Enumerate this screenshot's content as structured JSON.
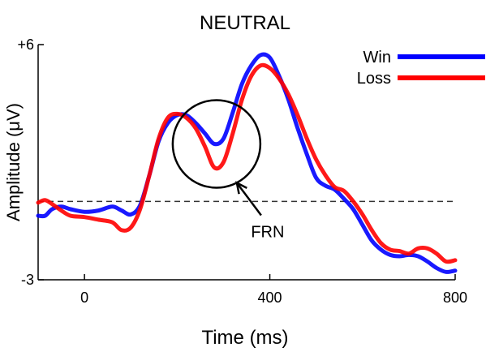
{
  "chart_data": {
    "type": "line",
    "title": "NEUTRAL",
    "xlabel": "Time (ms)",
    "ylabel": "Amplitude (μV)",
    "xlim": [
      -100,
      800
    ],
    "ylim": [
      -3,
      6
    ],
    "x_ticks": [
      {
        "value": 0,
        "label": "0"
      },
      {
        "value": 400,
        "label": "400"
      },
      {
        "value": 800,
        "label": "800"
      }
    ],
    "y_ticks": [
      {
        "value": 6,
        "label": "+6"
      },
      {
        "value": -3,
        "label": "-3"
      }
    ],
    "baseline": 0,
    "grid": false,
    "legend_position": "top-right",
    "annotation": {
      "text": "FRN",
      "target_x": 285,
      "target_y": 2.2
    },
    "series": [
      {
        "name": "Win",
        "color": "#0000ff",
        "points": [
          [
            -100,
            -0.55
          ],
          [
            -85,
            -0.55
          ],
          [
            -70,
            -0.3
          ],
          [
            -50,
            -0.2
          ],
          [
            -30,
            -0.3
          ],
          [
            0,
            -0.4
          ],
          [
            30,
            -0.35
          ],
          [
            60,
            -0.2
          ],
          [
            80,
            -0.35
          ],
          [
            100,
            -0.5
          ],
          [
            120,
            -0.15
          ],
          [
            140,
            1.0
          ],
          [
            160,
            2.3
          ],
          [
            180,
            3.0
          ],
          [
            200,
            3.3
          ],
          [
            220,
            3.3
          ],
          [
            240,
            3.0
          ],
          [
            260,
            2.6
          ],
          [
            280,
            2.2
          ],
          [
            300,
            2.4
          ],
          [
            320,
            3.4
          ],
          [
            340,
            4.5
          ],
          [
            360,
            5.2
          ],
          [
            380,
            5.6
          ],
          [
            400,
            5.5
          ],
          [
            420,
            4.8
          ],
          [
            440,
            3.9
          ],
          [
            460,
            2.8
          ],
          [
            480,
            1.8
          ],
          [
            500,
            0.9
          ],
          [
            520,
            0.6
          ],
          [
            540,
            0.45
          ],
          [
            560,
            0.1
          ],
          [
            580,
            -0.3
          ],
          [
            600,
            -0.9
          ],
          [
            620,
            -1.5
          ],
          [
            640,
            -1.85
          ],
          [
            660,
            -2.05
          ],
          [
            680,
            -2.1
          ],
          [
            700,
            -2.05
          ],
          [
            720,
            -2.1
          ],
          [
            740,
            -2.3
          ],
          [
            760,
            -2.55
          ],
          [
            780,
            -2.7
          ],
          [
            800,
            -2.65
          ]
        ]
      },
      {
        "name": "Loss",
        "color": "#ff0000",
        "points": [
          [
            -100,
            -0.05
          ],
          [
            -85,
            0.05
          ],
          [
            -70,
            -0.1
          ],
          [
            -50,
            -0.35
          ],
          [
            -30,
            -0.55
          ],
          [
            0,
            -0.6
          ],
          [
            30,
            -0.7
          ],
          [
            60,
            -0.8
          ],
          [
            80,
            -1.1
          ],
          [
            100,
            -1.0
          ],
          [
            120,
            -0.3
          ],
          [
            140,
            1.0
          ],
          [
            160,
            2.4
          ],
          [
            180,
            3.2
          ],
          [
            200,
            3.35
          ],
          [
            220,
            3.2
          ],
          [
            240,
            2.8
          ],
          [
            260,
            2.1
          ],
          [
            280,
            1.3
          ],
          [
            300,
            1.5
          ],
          [
            320,
            2.6
          ],
          [
            340,
            3.9
          ],
          [
            360,
            4.8
          ],
          [
            380,
            5.2
          ],
          [
            400,
            5.1
          ],
          [
            420,
            4.7
          ],
          [
            440,
            4.1
          ],
          [
            460,
            3.3
          ],
          [
            480,
            2.4
          ],
          [
            500,
            1.6
          ],
          [
            520,
            1.0
          ],
          [
            540,
            0.55
          ],
          [
            560,
            0.4
          ],
          [
            580,
            0.0
          ],
          [
            600,
            -0.5
          ],
          [
            620,
            -1.1
          ],
          [
            640,
            -1.6
          ],
          [
            660,
            -1.85
          ],
          [
            680,
            -1.9
          ],
          [
            700,
            -2.0
          ],
          [
            720,
            -1.8
          ],
          [
            740,
            -1.8
          ],
          [
            760,
            -2.0
          ],
          [
            780,
            -2.3
          ],
          [
            800,
            -2.25
          ]
        ]
      }
    ]
  }
}
